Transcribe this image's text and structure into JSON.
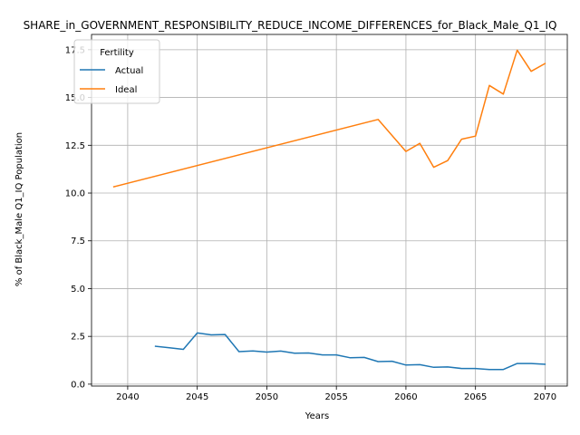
{
  "chart_data": {
    "type": "line",
    "title": "SHARE_in_GOVERNMENT_RESPONSIBILITY_REDUCE_INCOME_DIFFERENCES_for_Black_Male_Q1_IQ",
    "xlabel": "Years",
    "ylabel": "% of Black_Male Q1_IQ Population",
    "xlim": [
      2037.4,
      2071.6
    ],
    "ylim": [
      -0.1,
      18.3
    ],
    "xticks": [
      2040,
      2045,
      2050,
      2055,
      2060,
      2065,
      2070
    ],
    "xtick_labels": [
      "2040",
      "2045",
      "2050",
      "2055",
      "2060",
      "2065",
      "2070"
    ],
    "yticks": [
      0,
      2.5,
      5,
      7.5,
      10,
      12.5,
      15,
      17.5
    ],
    "ytick_labels": [
      "0.0",
      "2.5",
      "5.0",
      "7.5",
      "10.0",
      "12.5",
      "15.0",
      "17.5"
    ],
    "grid": true,
    "legend": {
      "title": "Fertility",
      "placement": "upper left"
    },
    "series": [
      {
        "name": "Actual",
        "color": "#1f77b4",
        "x": [
          2042,
          2043,
          2044,
          2045,
          2046,
          2047,
          2048,
          2049,
          2050,
          2051,
          2052,
          2053,
          2054,
          2055,
          2056,
          2057,
          2058,
          2059,
          2060,
          2061,
          2062,
          2063,
          2064,
          2065,
          2066,
          2067,
          2068,
          2069,
          2070
        ],
        "y": [
          1.98,
          1.9,
          1.82,
          2.68,
          2.58,
          2.6,
          1.7,
          1.74,
          1.68,
          1.73,
          1.62,
          1.63,
          1.53,
          1.53,
          1.38,
          1.4,
          1.18,
          1.2,
          1.0,
          1.02,
          0.88,
          0.9,
          0.82,
          0.82,
          0.77,
          0.77,
          1.08,
          1.08,
          1.04
        ]
      },
      {
        "name": "Ideal",
        "color": "#ff7f0e",
        "x": [
          2039,
          2058,
          2060,
          2061,
          2062,
          2063,
          2064,
          2065,
          2066,
          2067,
          2068,
          2069,
          2070
        ],
        "y": [
          10.33,
          13.85,
          12.18,
          12.6,
          11.35,
          11.7,
          12.82,
          12.98,
          15.63,
          15.18,
          17.48,
          16.37,
          16.78
        ]
      }
    ]
  }
}
